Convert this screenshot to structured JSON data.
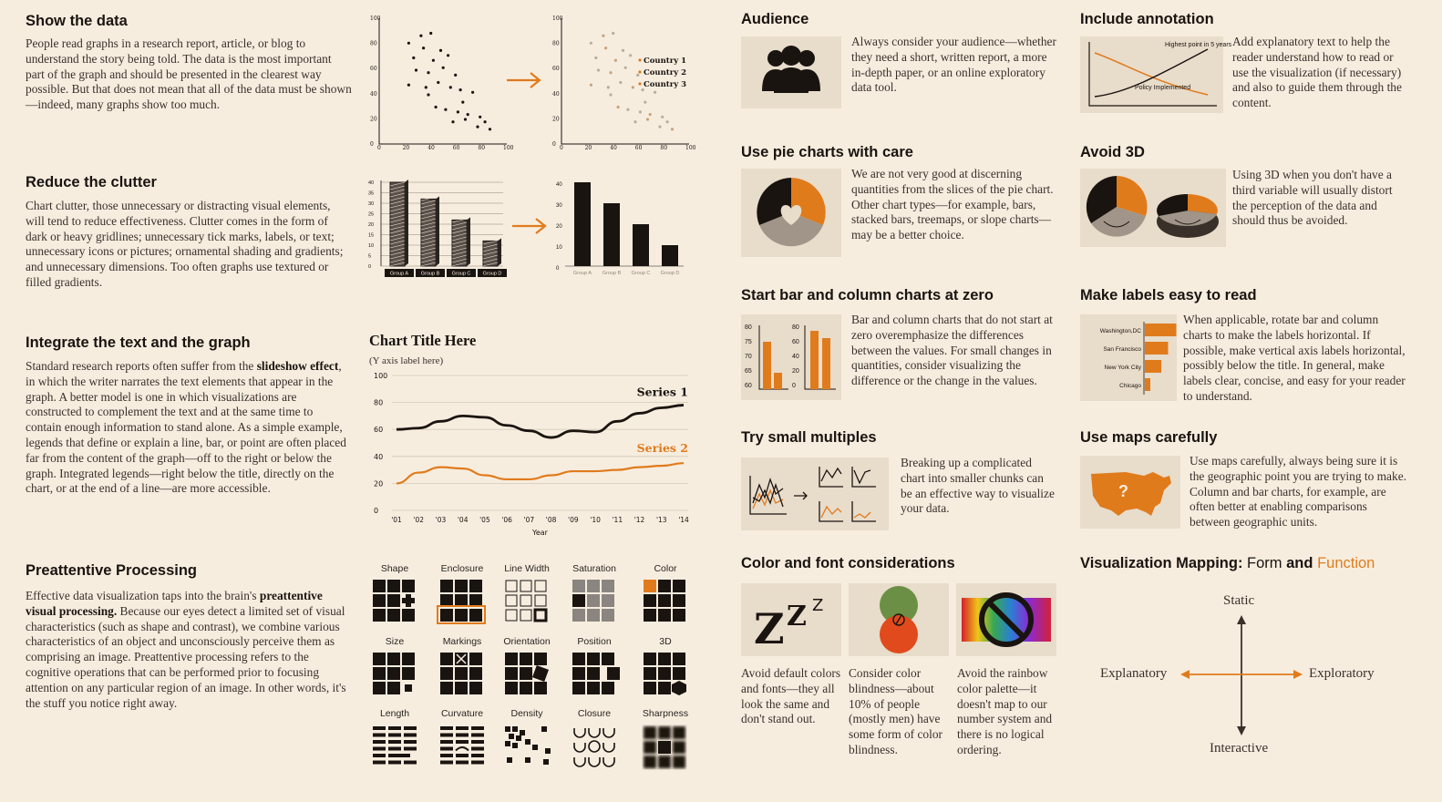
{
  "sections": {
    "show_data": {
      "title": "Show the data",
      "body": "People read graphs in a research report, article, or blog to understand the story being told. The data is the most important part of the graph and should be presented in the clearest way possible. But that does not mean that all of the data must be shown—indeed, many graphs show too much.",
      "legend": [
        "Country 1",
        "Country 2",
        "Country 3"
      ],
      "axis_ticks": [
        "0",
        "20",
        "40",
        "60",
        "80",
        "100"
      ]
    },
    "clutter": {
      "title": "Reduce the clutter",
      "body": "Chart clutter, those unnecessary or distracting visual elements, will tend to reduce effectiveness. Clutter comes in the form of dark or heavy gridlines; unnecessary tick marks, labels, or text; unnecessary icons or pictures; ornamental shading and gradients; and unnecessary dimensions. Too often graphs use textured or filled gradients.",
      "groups": [
        "Group A",
        "Group B",
        "Group C",
        "Group D"
      ],
      "yticks": [
        "0",
        "5",
        "10",
        "15",
        "20",
        "25",
        "30",
        "35",
        "40"
      ]
    },
    "integrate": {
      "title": "Integrate the text and the graph",
      "body_pre": "Standard research reports often suffer from the ",
      "body_bold": "slideshow effect",
      "body_post": ", in which the writer narrates the text elements that appear in the graph. A better model is one in which visualizations are constructed to complement the text and at the same time to contain enough information to stand alone. As a simple example, legends that define or explain a line, bar, or point are often placed far from the content of the graph—off to the right or below the graph. Integrated legends—right below the title, directly on the chart, or at the end of a line—are more accessible."
    },
    "preattentive": {
      "title": "Preattentive Processing",
      "body_pre": "Effective data visualization taps into the brain's ",
      "body_bold": "preattentive visual processing.",
      "body_post": " Because our eyes detect a limited set of visual characteristics (such as shape and contrast), we combine various characteristics of an object and unconsciously perceive them as comprising an image. Preattentive processing refers to the cognitive operations that can be performed prior to focusing attention on any particular region of an image. In other words, it's the stuff you notice right away.",
      "labels": [
        "Shape",
        "Enclosure",
        "Line Width",
        "Saturation",
        "Color",
        "Size",
        "Markings",
        "Orientation",
        "Position",
        "3D",
        "Length",
        "Curvature",
        "Density",
        "Closure",
        "Sharpness"
      ]
    },
    "audience": {
      "title": "Audience",
      "body": "Always consider your audience—whether they need a short, written report, a more in-depth paper, or an online exploratory data tool."
    },
    "annotation": {
      "title": "Include annotation",
      "body": "Add explanatory text to help the reader understand how to read or use the visualization (if necessary) and also to guide them through the content.",
      "note_top": "Highest point in 5 years",
      "note_mid": "Policy Implemented"
    },
    "pie": {
      "title": "Use pie charts with care",
      "body": "We are not very good at discerning quantities from the slices of the pie chart. Other chart types—for example, bars, stacked bars, treemaps, or slope charts—may be a better choice."
    },
    "avoid3d": {
      "title": "Avoid 3D",
      "body": "Using 3D when you don't have a third variable will usually distort the perception of the data and should thus be avoided."
    },
    "zero": {
      "title": "Start bar and column charts at zero",
      "body": "Bar and column charts that do not start at zero overemphasize the differences between the values. For small changes in quantities, consider visualizing the difference or the change in the values.",
      "left_ticks": [
        "80",
        "75",
        "70",
        "65",
        "60"
      ],
      "right_ticks": [
        "80",
        "60",
        "40",
        "20",
        "0"
      ]
    },
    "labels": {
      "title": "Make labels easy to read",
      "body": "When applicable, rotate bar and column charts to make the labels horizontal. If possible, make vertical axis labels horizontal, possibly below the title. In general, make labels clear, concise, and easy for your reader to understand.",
      "cities": [
        "Washington,DC",
        "San Francisco",
        "New York City",
        "Chicago"
      ]
    },
    "multiples": {
      "title": "Try small multiples",
      "body": "Breaking up a complicated chart into smaller chunks can be an effective way to visualize your data."
    },
    "maps": {
      "title": "Use maps carefully",
      "body": "Use maps carefully, always being sure it is the geographic point you are trying to make. Column and bar charts, for example, are often better at enabling comparisons between geographic units."
    },
    "color_font": {
      "title": "Color and font considerations",
      "col1": "Avoid default colors and fonts—they all look the same and don't stand out.",
      "col2": "Consider color blindness—about 10% of people (mostly men) have some form of color blindness.",
      "col3": "Avoid the rainbow color palette—it doesn't map to our number system and there is no logical ordering."
    },
    "mapping": {
      "title_a": "Visualization Mapping: ",
      "title_b": "Form",
      "title_c": " and ",
      "title_d": "Function",
      "top": "Static",
      "bottom": "Interactive",
      "left": "Explanatory",
      "right": "Exploratory"
    }
  },
  "colors": {
    "accent": "#e07b1c",
    "dark": "#1a1410",
    "card": "#e8dccb",
    "bg": "#f7eddf"
  },
  "chart_data": {
    "type": "line",
    "title": "Chart Title Here",
    "subtitle": "(Y axis label here)",
    "xlabel": "Year",
    "categories": [
      "'01",
      "'02",
      "'03",
      "'04",
      "'05",
      "'06",
      "'07",
      "'08",
      "'09",
      "'10",
      "'11",
      "'12",
      "'13",
      "'14"
    ],
    "ylim": [
      0,
      100
    ],
    "yticks": [
      0,
      20,
      40,
      60,
      80,
      100
    ],
    "series": [
      {
        "name": "Series 1",
        "values": [
          60,
          61,
          66,
          70,
          69,
          63,
          59,
          54,
          59,
          58,
          66,
          72,
          76,
          78
        ]
      },
      {
        "name": "Series 2",
        "values": [
          20,
          28,
          32,
          31,
          26,
          23,
          23,
          26,
          29,
          29,
          30,
          32,
          33,
          35
        ]
      }
    ]
  }
}
